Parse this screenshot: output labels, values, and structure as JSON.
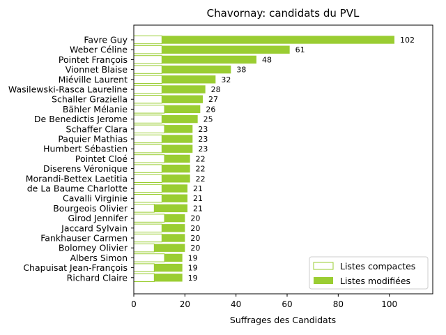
{
  "colors": {
    "modified_fill": "#9acd32",
    "compact_edge": "#9acd32",
    "compact_fill": "#ffffff",
    "axis": "#000000"
  },
  "chart_data": {
    "type": "bar",
    "orientation": "horizontal",
    "stacked": true,
    "title": "Chavornay: candidats du PVL",
    "xlabel": "Suffrages des Candidats",
    "ylabel": "",
    "xlim": [
      0,
      117
    ],
    "xticks": [
      0,
      20,
      40,
      60,
      80,
      100
    ],
    "grid": false,
    "legend_position": "bottom-right",
    "categories": [
      "Favre Guy",
      "Weber Céline",
      "Pointet François",
      "Vionnet Blaise",
      "Miéville Laurent",
      "Wasilewski-Rasca Laureline",
      "Schaller Graziella",
      "Bähler Mélanie",
      "De Benedictis Jerome",
      "Schaffer Clara",
      "Paquier Mathias",
      "Humbert Sébastien",
      "Pointet Cloé",
      "Diserens Véronique",
      "Morandi-Bettex Laetitia",
      "de La Baume Charlotte",
      "Cavalli Virginie",
      "Bourgeois Olivier",
      "Girod Jennifer",
      "Jaccard Sylvain",
      "Fankhauser Carmen",
      "Bolomey Olivier",
      "Albers Simon",
      "Chapuisat Jean-François",
      "Richard Claire"
    ],
    "series": [
      {
        "name": "Listes compactes",
        "values": [
          11,
          11,
          11,
          11,
          11,
          11,
          11,
          12,
          11,
          12,
          11,
          11,
          12,
          11,
          11,
          11,
          11,
          8,
          12,
          11,
          11,
          8,
          12,
          8,
          8
        ]
      },
      {
        "name": "Listes modifiées",
        "values": [
          91,
          50,
          37,
          27,
          21,
          17,
          16,
          14,
          14,
          11,
          12,
          12,
          10,
          11,
          11,
          10,
          10,
          13,
          8,
          9,
          9,
          12,
          7,
          11,
          11
        ]
      }
    ],
    "totals": [
      102,
      61,
      48,
      38,
      32,
      28,
      27,
      26,
      25,
      23,
      23,
      23,
      22,
      22,
      22,
      21,
      21,
      21,
      20,
      20,
      20,
      20,
      19,
      19,
      19
    ]
  }
}
